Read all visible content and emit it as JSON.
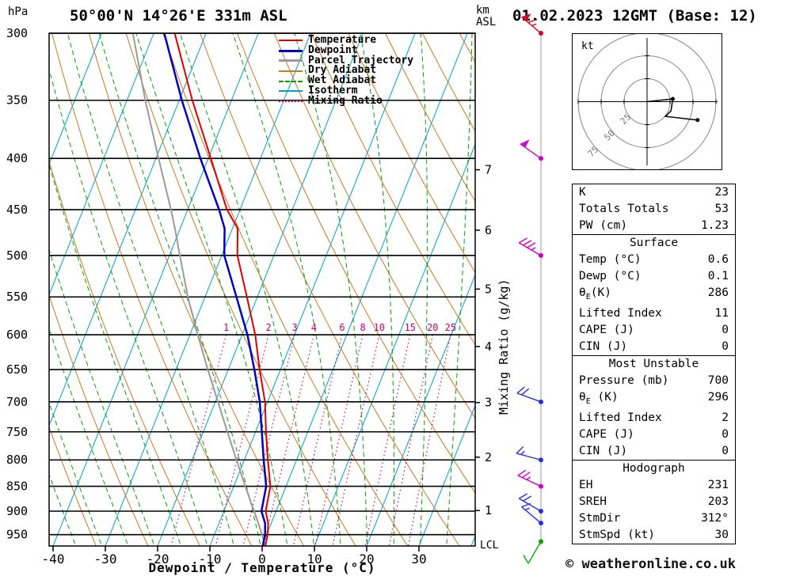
{
  "header": {
    "pressure_unit": "hPa",
    "station": "50°00'N 14°26'E 331m ASL",
    "km": "km",
    "asl": "ASL",
    "datetime": "01.02.2023 12GMT (Base: 12)"
  },
  "legend": {
    "items": [
      {
        "label": "Temperature",
        "color": "#dd0000",
        "style": "solid",
        "width": 2
      },
      {
        "label": "Dewpoint",
        "color": "#0000bb",
        "style": "solid",
        "width": 3
      },
      {
        "label": "Parcel Trajectory",
        "color": "#9a9a9a",
        "style": "solid",
        "width": 3
      },
      {
        "label": "Dry Adiabat",
        "color": "#cc7722",
        "style": "solid",
        "width": 2
      },
      {
        "label": "Wet Adiabat",
        "color": "#00a000",
        "style": "dashed",
        "width": 2
      },
      {
        "label": "Isotherm",
        "color": "#00a0c8",
        "style": "solid",
        "width": 2
      },
      {
        "label": "Mixing Ratio",
        "color": "#cc0066",
        "style": "dotted",
        "width": 2
      }
    ]
  },
  "colors": {
    "temperature": "#dd0000",
    "dewpoint": "#0000bb",
    "parcel": "#9a9a9a",
    "dry_adiabat": "#cc7722",
    "wet_adiabat": "#00a000",
    "isotherm": "#00a0c8",
    "mixing_ratio": "#cc0066",
    "grid": "#000000",
    "barb_axis": "#999999"
  },
  "axes": {
    "pressure_ticks": [
      300,
      350,
      400,
      450,
      500,
      550,
      600,
      650,
      700,
      750,
      800,
      850,
      900,
      950
    ],
    "temperature_ticks": [
      -40,
      -30,
      -20,
      -10,
      0,
      10,
      20,
      30
    ],
    "x_label": "Dewpoint / Temperature (°C)",
    "km_ticks": [
      7,
      6,
      5,
      4,
      3,
      2,
      1
    ],
    "lcl": "LCL",
    "mixing_ratio_axis_label": "Mixing Ratio (g/kg)",
    "mixing_ratio_lines": [
      1,
      2,
      3,
      4,
      6,
      8,
      10,
      15,
      20,
      25
    ]
  },
  "chart_data": {
    "type": "skewt-log-p",
    "pressure_axis": {
      "top_hpa": 300,
      "bottom_hpa": 975,
      "scale": "log"
    },
    "temperature_axis_range_c": [
      -40,
      40
    ],
    "sounding": {
      "pressure": [
        975,
        950,
        925,
        900,
        850,
        800,
        750,
        700,
        650,
        600,
        550,
        500,
        470,
        450,
        400,
        350,
        300
      ],
      "temperature_c": [
        0.6,
        0.2,
        -0.6,
        -2.0,
        -3.0,
        -5.5,
        -8.0,
        -10.5,
        -14.0,
        -17.5,
        -22.0,
        -27.0,
        -29.0,
        -32.5,
        -39.5,
        -47.5,
        -56.0
      ],
      "dewpoint_c": [
        0.1,
        -0.3,
        -1.2,
        -2.8,
        -3.8,
        -6.3,
        -8.8,
        -11.5,
        -15.0,
        -19.0,
        -24.0,
        -29.5,
        -31.5,
        -34.0,
        -41.5,
        -49.5,
        -58.0
      ],
      "parcel_c": [
        0.6,
        -0.9,
        -2.5,
        -4.2,
        -7.8,
        -11.5,
        -15.4,
        -19.5,
        -23.9,
        -28.5,
        -33.3,
        -38.0,
        -41.0,
        -43.2,
        -49.5,
        -56.5,
        -64.0
      ]
    },
    "wind_barbs": [
      {
        "pressure_hpa": 300,
        "speed_kt": 65,
        "dir_deg": 310,
        "color": "#dd0022"
      },
      {
        "pressure_hpa": 400,
        "speed_kt": 50,
        "dir_deg": 305,
        "color": "#cc00cc"
      },
      {
        "pressure_hpa": 500,
        "speed_kt": 35,
        "dir_deg": 300,
        "color": "#cc00cc"
      },
      {
        "pressure_hpa": 700,
        "speed_kt": 20,
        "dir_deg": 290,
        "color": "#2233dd"
      },
      {
        "pressure_hpa": 800,
        "speed_kt": 15,
        "dir_deg": 285,
        "color": "#2233dd"
      },
      {
        "pressure_hpa": 850,
        "speed_kt": 25,
        "dir_deg": 295,
        "color": "#cc00cc"
      },
      {
        "pressure_hpa": 900,
        "speed_kt": 20,
        "dir_deg": 300,
        "color": "#2233dd"
      },
      {
        "pressure_hpa": 925,
        "speed_kt": 15,
        "dir_deg": 310,
        "color": "#2233dd"
      },
      {
        "pressure_hpa": 965,
        "speed_kt": 10,
        "dir_deg": 210,
        "color": "#00aa00"
      }
    ]
  },
  "hodograph": {
    "unit": "kt",
    "rings_kt": [
      25,
      50,
      75
    ],
    "trace_kt": [
      [
        0,
        0
      ],
      [
        28,
        3
      ],
      [
        26,
        -10
      ],
      [
        20,
        -16
      ],
      [
        55,
        -20
      ]
    ],
    "dots_kt": [
      [
        28,
        3
      ],
      [
        55,
        -20
      ]
    ]
  },
  "tables": {
    "indices": {
      "rows": [
        {
          "label": "K",
          "value": "23"
        },
        {
          "label": "Totals Totals",
          "value": "53"
        },
        {
          "label": "PW (cm)",
          "value": "1.23"
        }
      ]
    },
    "surface": {
      "title": "Surface",
      "rows": [
        {
          "label": "Temp (°C)",
          "value": "0.6"
        },
        {
          "label": "Dewp (°C)",
          "value": "0.1"
        },
        {
          "base": "θ",
          "sub": "E",
          "rest": "(K)",
          "value": "286"
        },
        {
          "label": "Lifted Index",
          "value": "11"
        },
        {
          "label": "CAPE (J)",
          "value": "0"
        },
        {
          "label": "CIN (J)",
          "value": "0"
        }
      ]
    },
    "most_unstable": {
      "title": "Most Unstable",
      "rows": [
        {
          "label": "Pressure (mb)",
          "value": "700"
        },
        {
          "base": "θ",
          "sub": "E",
          "rest": " (K)",
          "value": "296"
        },
        {
          "label": "Lifted Index",
          "value": "2"
        },
        {
          "label": "CAPE (J)",
          "value": "0"
        },
        {
          "label": "CIN (J)",
          "value": "0"
        }
      ]
    },
    "hodograph": {
      "title": "Hodograph",
      "rows": [
        {
          "label": "EH",
          "value": "231"
        },
        {
          "label": "SREH",
          "value": "203"
        },
        {
          "label": "StmDir",
          "value": "312°"
        },
        {
          "label": "StmSpd (kt)",
          "value": "30"
        }
      ]
    }
  },
  "footer": {
    "credit": "© weatheronline.co.uk"
  }
}
